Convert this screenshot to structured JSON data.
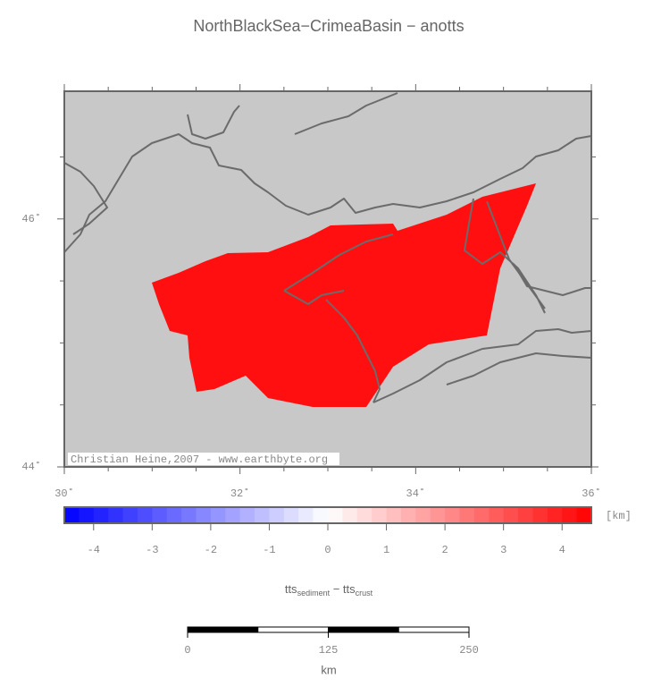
{
  "chart_data": {
    "type": "map",
    "title": "NorthBlackSea−CrimeaBasin − anotts",
    "xlim": [
      30,
      36
    ],
    "ylim": [
      44,
      47.03
    ],
    "xticks": [
      {
        "value": 30,
        "label": "30˚"
      },
      {
        "value": 32,
        "label": "32˚"
      },
      {
        "value": 34,
        "label": "34˚"
      },
      {
        "value": 36,
        "label": "36˚"
      }
    ],
    "yticks": [
      {
        "value": 44,
        "label": "44˚"
      },
      {
        "value": 46,
        "label": "46˚"
      }
    ],
    "xminor": [
      30.5,
      31,
      31.5,
      32.5,
      33,
      33.5,
      34.5,
      35,
      35.5
    ],
    "yminor": [
      44.5,
      45,
      45.5,
      46.5
    ],
    "credit": "Christian Heine,2007 - www.earthbyte.org",
    "colorbar": {
      "xlim": [
        -4.5,
        4.5
      ],
      "step": 0.25,
      "colors": [
        "#0000ff",
        "#ffffff",
        "#ff0000"
      ],
      "ticks": [
        -4,
        -3,
        -2,
        -1,
        0,
        1,
        2,
        3,
        4
      ],
      "unit": "[km]",
      "label": [
        "tts",
        "sediment",
        " − tts",
        "crust"
      ]
    },
    "scalebar": {
      "xlim": [
        0,
        250
      ],
      "ticks": [
        0,
        125,
        250
      ],
      "step": 62.5,
      "unit": "km"
    }
  }
}
